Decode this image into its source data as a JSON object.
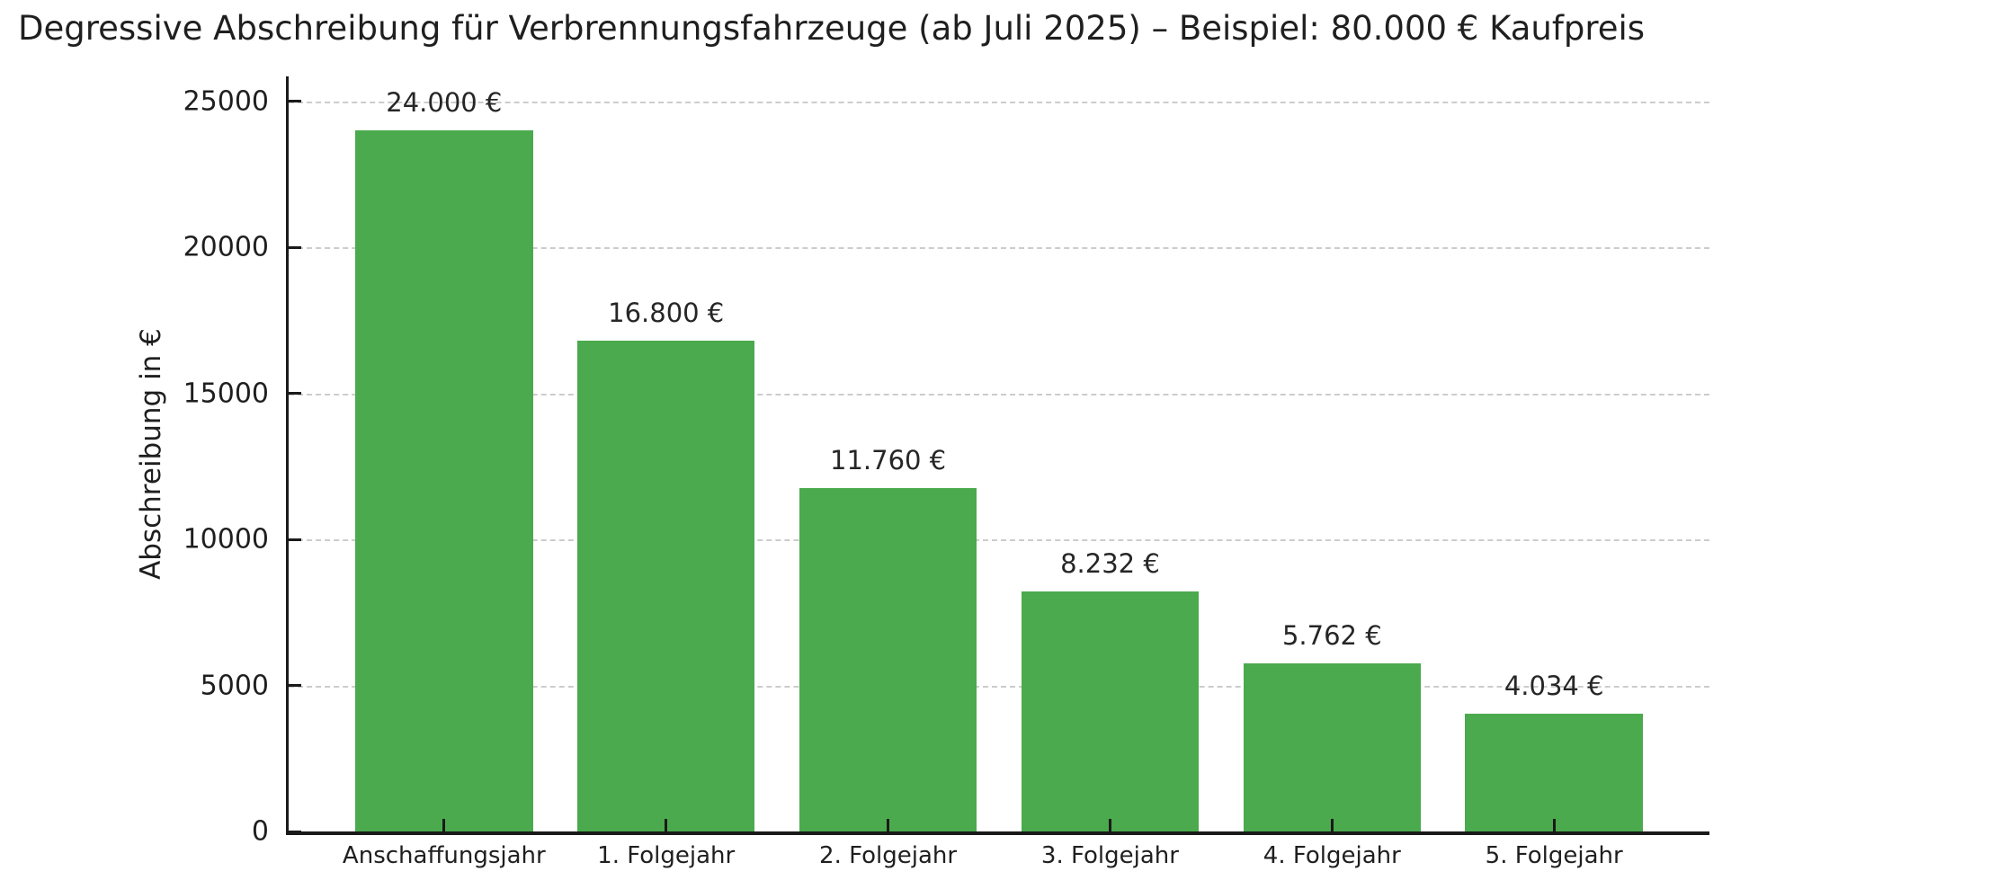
{
  "chart_data": {
    "type": "bar",
    "title": "Degressive Abschreibung für Verbrennungsfahrzeuge (ab Juli 2025) – Beispiel: 80.000 € Kaufpreis",
    "xlabel": "",
    "ylabel": "Abschreibung in €",
    "categories": [
      "Anschaffungsjahr",
      "1. Folgejahr",
      "2. Folgejahr",
      "3. Folgejahr",
      "4. Folgejahr",
      "5. Folgejahr"
    ],
    "values": [
      24000,
      16800,
      11760,
      8232,
      5762,
      4034
    ],
    "value_labels": [
      "24.000 €",
      "16.800 €",
      "11.760 €",
      "8.232 €",
      "5.762 €",
      "4.034 €"
    ],
    "yticks": [
      0,
      5000,
      10000,
      15000,
      20000,
      25000
    ],
    "ylim": [
      0,
      25860
    ],
    "grid": "horizontal-dashed",
    "legend": "none",
    "bar_color": "#4aaa4d",
    "grid_color": "#cccccc",
    "axis_color": "#1a1a1a",
    "text_color": "#1f1f1f"
  }
}
